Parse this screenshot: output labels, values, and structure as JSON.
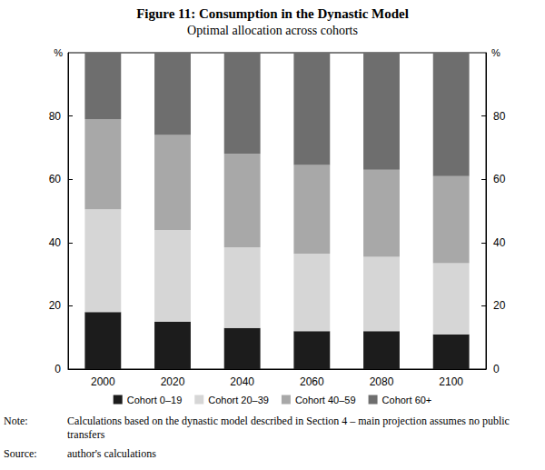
{
  "chart_data": {
    "type": "bar",
    "stacked": true,
    "title": "Figure 11: Consumption in the Dynastic Model",
    "subtitle": "Optimal allocation across cohorts",
    "ylabel": "%",
    "categories": [
      "2000",
      "2020",
      "2040",
      "2060",
      "2080",
      "2100"
    ],
    "series": [
      {
        "name": "Cohort 0–19",
        "color": "#1c1c1c",
        "values": [
          18,
          15,
          13,
          12,
          12,
          11
        ]
      },
      {
        "name": "Cohort 20–39",
        "color": "#d6d6d6",
        "values": [
          32.5,
          29,
          25.5,
          24.5,
          23.5,
          22.5
        ]
      },
      {
        "name": "Cohort 40–59",
        "color": "#a8a8a8",
        "values": [
          28.5,
          30,
          29.5,
          28,
          27.5,
          27.5
        ]
      },
      {
        "name": "Cohort 60+",
        "color": "#6e6e6e",
        "values": [
          21,
          26,
          32,
          35.5,
          37,
          39
        ]
      }
    ],
    "ylim": [
      0,
      100
    ],
    "yticks": [
      0,
      20,
      40,
      60,
      80
    ],
    "grid": false,
    "legend": "bottom",
    "annotations": [
      {
        "label": "Note:",
        "text": "Calculations based on the dynastic model described in Section 4 – main projection assumes no public transfers"
      },
      {
        "label": "Source:",
        "text": "author's calculations"
      }
    ]
  }
}
